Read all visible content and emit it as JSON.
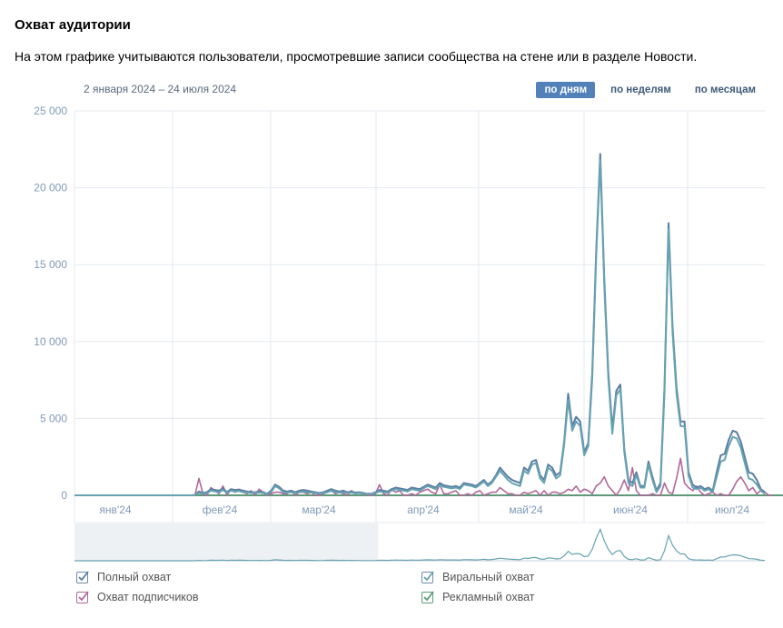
{
  "header": {
    "title": "Охват аудитории",
    "subtitle": "На этом графике учитываются пользователи, просмотревшие записи сообщества на стене или в разделе Новости.",
    "date_range": "2 января 2024 – 24 июля 2024"
  },
  "tabs": [
    {
      "label": "по дням",
      "active": true
    },
    {
      "label": "по неделям",
      "active": false
    },
    {
      "label": "по месяцам",
      "active": false
    }
  ],
  "colors": {
    "full": "#5b7da3",
    "viral": "#66a3b0",
    "subscribers": "#b0689a",
    "ads": "#5e9a7a",
    "tab_active": "#5181b8"
  },
  "chart_data": {
    "type": "line",
    "ylim": [
      0,
      25000
    ],
    "y_ticks": [
      "25 000",
      "20 000",
      "15 000",
      "10 000",
      "5 000",
      "0"
    ],
    "x_ticks": [
      "янв'24",
      "фев'24",
      "мар'24",
      "апр'24",
      "май'24",
      "июн'24",
      "июл'24"
    ],
    "grid": true,
    "legend_position": "bottom",
    "series": [
      {
        "name": "Полный охват",
        "key": "full",
        "values": [
          0,
          0,
          0,
          0,
          0,
          0,
          0,
          0,
          0,
          0,
          0,
          0,
          0,
          0,
          0,
          0,
          0,
          0,
          0,
          0,
          0,
          0,
          0,
          0,
          0,
          0,
          0,
          0,
          0,
          0,
          20,
          250,
          150,
          200,
          400,
          350,
          300,
          450,
          200,
          400,
          350,
          380,
          300,
          250,
          200,
          200,
          250,
          200,
          100,
          300,
          700,
          550,
          300,
          250,
          300,
          200,
          300,
          350,
          300,
          250,
          200,
          150,
          200,
          300,
          400,
          300,
          250,
          300,
          200,
          250,
          180,
          200,
          150,
          100,
          100,
          200,
          350,
          300,
          250,
          400,
          500,
          450,
          400,
          350,
          500,
          450,
          400,
          550,
          700,
          600,
          500,
          800,
          650,
          600,
          550,
          600,
          500,
          800,
          750,
          700,
          600,
          800,
          1000,
          700,
          900,
          1300,
          1800,
          1500,
          1200,
          1000,
          900,
          800,
          1800,
          1600,
          2200,
          2300,
          1300,
          1000,
          2000,
          1800,
          1300,
          1500,
          3500,
          6600,
          4500,
          5100,
          4800,
          2800,
          3400,
          8000,
          16000,
          22200,
          14000,
          8000,
          4300,
          6800,
          7200,
          3000,
          1000,
          800,
          1500,
          600,
          600,
          2200,
          1200,
          300,
          800,
          7000,
          17700,
          11000,
          7000,
          4800,
          4800,
          1500,
          700,
          500,
          600,
          400,
          500,
          300,
          1500,
          2600,
          2700,
          3600,
          4200,
          4100,
          3500,
          2500,
          1500,
          1400,
          1000,
          400,
          200
        ]
      },
      {
        "name": "Виральный охват",
        "key": "viral",
        "values": [
          0,
          0,
          0,
          0,
          0,
          0,
          0,
          0,
          0,
          0,
          0,
          0,
          0,
          0,
          0,
          0,
          0,
          0,
          0,
          0,
          0,
          0,
          0,
          0,
          0,
          0,
          0,
          0,
          0,
          0,
          10,
          150,
          100,
          150,
          300,
          250,
          200,
          350,
          150,
          300,
          250,
          280,
          200,
          180,
          150,
          150,
          180,
          150,
          80,
          200,
          600,
          450,
          200,
          180,
          200,
          150,
          200,
          250,
          200,
          180,
          150,
          100,
          150,
          200,
          300,
          200,
          180,
          200,
          150,
          180,
          120,
          150,
          100,
          80,
          80,
          150,
          250,
          200,
          180,
          300,
          400,
          350,
          300,
          250,
          400,
          350,
          300,
          450,
          600,
          500,
          400,
          650,
          550,
          500,
          450,
          500,
          400,
          700,
          650,
          600,
          500,
          700,
          900,
          600,
          800,
          1200,
          1600,
          1300,
          1000,
          800,
          700,
          600,
          1600,
          1400,
          2000,
          2100,
          1100,
          800,
          1800,
          1600,
          1100,
          1300,
          3300,
          6200,
          4200,
          4800,
          4500,
          2600,
          3200,
          7600,
          15600,
          21800,
          13600,
          7600,
          4000,
          6500,
          6900,
          2800,
          800,
          600,
          1300,
          500,
          500,
          2000,
          1000,
          200,
          600,
          6600,
          17300,
          10600,
          6600,
          4500,
          4500,
          1300,
          500,
          400,
          500,
          300,
          400,
          200,
          1200,
          2200,
          2300,
          3200,
          3800,
          3700,
          3100,
          2100,
          1100,
          1000,
          700,
          300,
          100
        ]
      },
      {
        "name": "Охват подписчиков",
        "key": "subscribers",
        "values": [
          0,
          0,
          0,
          0,
          0,
          0,
          0,
          0,
          0,
          0,
          0,
          0,
          0,
          0,
          0,
          0,
          0,
          0,
          0,
          0,
          0,
          0,
          0,
          0,
          0,
          0,
          0,
          0,
          0,
          0,
          0,
          1100,
          100,
          0,
          500,
          300,
          100,
          600,
          0,
          400,
          200,
          300,
          200,
          100,
          300,
          0,
          400,
          200,
          0,
          100,
          200,
          200,
          100,
          100,
          300,
          0,
          200,
          200,
          100,
          200,
          0,
          0,
          100,
          200,
          300,
          100,
          200,
          100,
          0,
          300,
          100,
          200,
          100,
          0,
          0,
          100,
          700,
          100,
          0,
          400,
          200,
          300,
          0,
          0,
          100,
          0,
          200,
          300,
          400,
          200,
          100,
          700,
          100,
          100,
          200,
          300,
          0,
          0,
          100,
          0,
          200,
          300,
          0,
          100,
          200,
          200,
          500,
          300,
          100,
          100,
          0,
          0,
          200,
          100,
          200,
          300,
          0,
          300,
          0,
          200,
          200,
          100,
          200,
          400,
          300,
          600,
          200,
          400,
          300,
          100,
          600,
          800,
          1200,
          600,
          300,
          0,
          400,
          1000,
          300,
          1800,
          300,
          0,
          0,
          0,
          100,
          0,
          0,
          800,
          200,
          100,
          1100,
          2400,
          800,
          500,
          300,
          600,
          200,
          0,
          100,
          200,
          0,
          100,
          0,
          0,
          400,
          900,
          1200,
          800,
          300,
          500,
          100,
          300,
          200,
          0,
          0
        ]
      },
      {
        "name": "Рекламный охват",
        "key": "ads",
        "values": [
          0,
          0,
          0,
          0,
          0,
          0,
          0,
          0,
          0,
          0,
          0,
          0,
          0,
          0,
          0,
          0,
          0,
          0,
          0,
          0,
          0,
          0,
          0,
          0,
          0,
          0,
          0,
          0,
          0,
          0,
          0,
          0,
          0,
          0,
          0,
          0,
          0,
          0,
          0,
          0,
          0,
          0,
          0,
          0,
          0,
          0,
          0,
          0,
          0,
          0,
          0,
          0,
          0,
          0,
          0,
          0,
          0,
          0,
          0,
          0,
          0,
          0,
          0,
          0,
          0,
          0,
          0,
          0,
          0,
          0,
          0,
          0,
          0,
          0,
          0,
          0,
          0,
          0,
          0,
          0,
          0,
          0,
          0,
          0,
          0,
          0,
          0,
          0,
          0,
          0,
          0,
          0,
          0,
          0,
          0,
          0,
          0,
          0,
          0,
          0,
          0,
          0,
          0,
          0,
          0,
          0,
          0,
          0,
          0,
          0,
          0,
          0,
          0,
          0,
          0,
          0,
          0,
          0,
          0,
          0,
          0,
          0,
          0,
          0,
          0,
          0,
          0,
          0,
          0,
          0,
          0,
          0,
          0,
          0,
          0,
          0,
          0,
          0,
          0,
          0,
          0,
          0,
          0,
          0,
          0,
          0,
          0,
          0,
          0,
          0,
          0,
          0,
          0,
          0,
          0,
          0,
          0,
          0,
          0,
          0,
          0,
          0,
          0,
          0,
          0,
          0,
          0,
          0,
          0,
          0,
          0,
          0,
          0,
          0,
          0,
          0,
          0,
          0,
          0,
          0,
          0
        ]
      }
    ],
    "navigator_selection": [
      0.0,
      0.44
    ]
  },
  "legend": [
    {
      "key": "full",
      "label": "Полный охват",
      "checked": true
    },
    {
      "key": "viral",
      "label": "Виральный охват",
      "checked": true
    },
    {
      "key": "subscribers",
      "label": "Охват подписчиков",
      "checked": true
    },
    {
      "key": "ads",
      "label": "Рекламный охват",
      "checked": true
    }
  ]
}
